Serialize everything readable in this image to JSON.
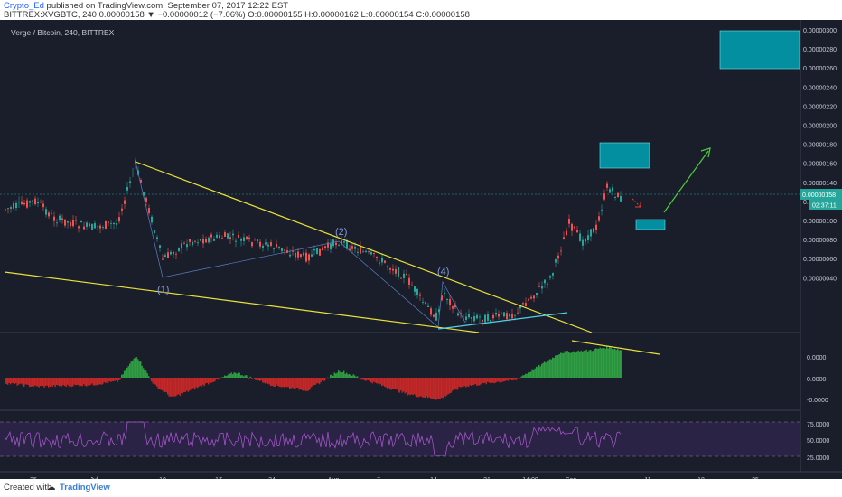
{
  "header": {
    "author": "Crypto_Ed",
    "published": "published on TradingView.com, September 07, 2017 12:22 EST",
    "symbol": "BITTREX:XVGBTC, 240",
    "change": "0.00000158 ▼ −0.00000012 (−7.06%)",
    "ohlc": "O:0.00000155 H:0.00000162 L:0.00000154 C:0.00000158"
  },
  "chart": {
    "title": "Verge / Bitcoin, 240, BITTREX",
    "price_ticks": [
      "0.00000300",
      "0.00000280",
      "0.00000260",
      "0.00000240",
      "0.00000220",
      "0.00000200",
      "0.00000180",
      "0.00000160",
      "0.00000140",
      "0.00000120",
      "0.00000100",
      "0.00000080",
      "0.00000060",
      "0.00000040"
    ],
    "last_price": "0.00000158",
    "countdown": "02:37:11",
    "macd_ticks": [
      "0.0000",
      "0.0000",
      "-0.0000"
    ],
    "rsi_ticks": [
      "75.0000",
      "50.0000",
      "25.0000"
    ],
    "x_ticks": [
      "25",
      "Jul",
      "10",
      "17",
      "24",
      "Aug",
      "7",
      "14",
      "21",
      "14:00",
      "Sep",
      "11",
      "18",
      "25"
    ],
    "wave_labels": [
      "(1)",
      "(2)",
      "(4)"
    ],
    "colors": {
      "up": "#26a69a",
      "down": "#ef5350",
      "trendline": "#e8e23a",
      "cyan_box": "#00a3b4",
      "green_arrow": "#4cd137",
      "red_arrow": "#e53935"
    }
  },
  "footer": {
    "created": "Created with",
    "brand": "TradingView"
  }
}
